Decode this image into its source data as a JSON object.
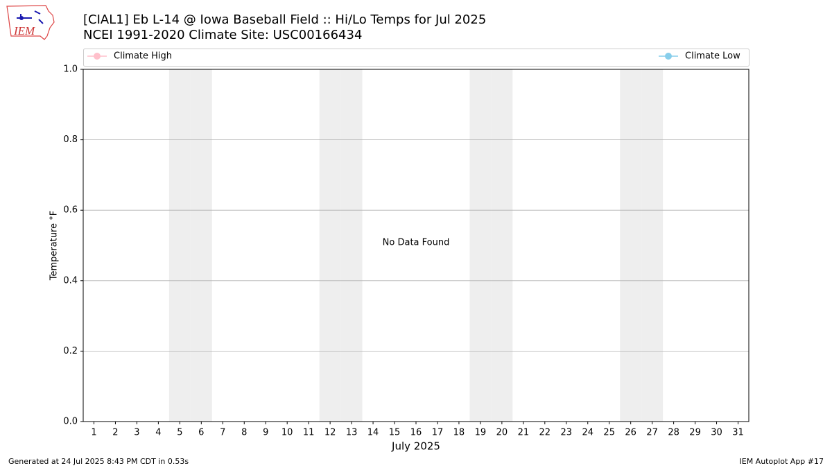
{
  "chart_data": {
    "type": "line",
    "title": "[CIAL1] Eb L-14 @ Iowa Baseball Field :: Hi/Lo Temps for Jul 2025",
    "subtitle": "NCEI 1991-2020 Climate Site: USC00166434",
    "x_label": "July 2025",
    "y_label": "Temperature °F",
    "annotation": "No Data Found",
    "logo_text": "IEM",
    "footer_left": "Generated at 24 Jul 2025 8:43 PM CDT in 0.53s",
    "footer_right": "IEM Autoplot App #17",
    "x": [
      1,
      2,
      3,
      4,
      5,
      6,
      7,
      8,
      9,
      10,
      11,
      12,
      13,
      14,
      15,
      16,
      17,
      18,
      19,
      20,
      21,
      22,
      23,
      24,
      25,
      26,
      27,
      28,
      29,
      30,
      31
    ],
    "series": [
      {
        "name": "Climate High",
        "color": "pink",
        "values": [
          null,
          null,
          null,
          null,
          null,
          null,
          null,
          null,
          null,
          null,
          null,
          null,
          null,
          null,
          null,
          null,
          null,
          null,
          null,
          null,
          null,
          null,
          null,
          null,
          null,
          null,
          null,
          null,
          null,
          null,
          null
        ]
      },
      {
        "name": "Climate Low",
        "color": "skyblue",
        "values": [
          null,
          null,
          null,
          null,
          null,
          null,
          null,
          null,
          null,
          null,
          null,
          null,
          null,
          null,
          null,
          null,
          null,
          null,
          null,
          null,
          null,
          null,
          null,
          null,
          null,
          null,
          null,
          null,
          null,
          null,
          null
        ]
      }
    ],
    "shaded_days": [
      5,
      6,
      12,
      13,
      19,
      20,
      26,
      27
    ],
    "shade_color": "#eeeeee",
    "xlim": [
      0.5,
      31.5
    ],
    "xticks": [
      1,
      2,
      3,
      4,
      5,
      6,
      7,
      8,
      9,
      10,
      11,
      12,
      13,
      14,
      15,
      16,
      17,
      18,
      19,
      20,
      21,
      22,
      23,
      24,
      25,
      26,
      27,
      28,
      29,
      30,
      31
    ],
    "ylim": [
      0,
      1
    ],
    "yticks": [
      {
        "value": 0,
        "label": "0.0"
      },
      {
        "value": 0.2,
        "label": "0.2"
      },
      {
        "value": 0.4,
        "label": "0.4"
      },
      {
        "value": 0.6,
        "label": "0.6"
      },
      {
        "value": 0.8,
        "label": "0.8"
      },
      {
        "value": 1,
        "label": "1.0"
      }
    ],
    "grid": true,
    "legend": "top"
  }
}
